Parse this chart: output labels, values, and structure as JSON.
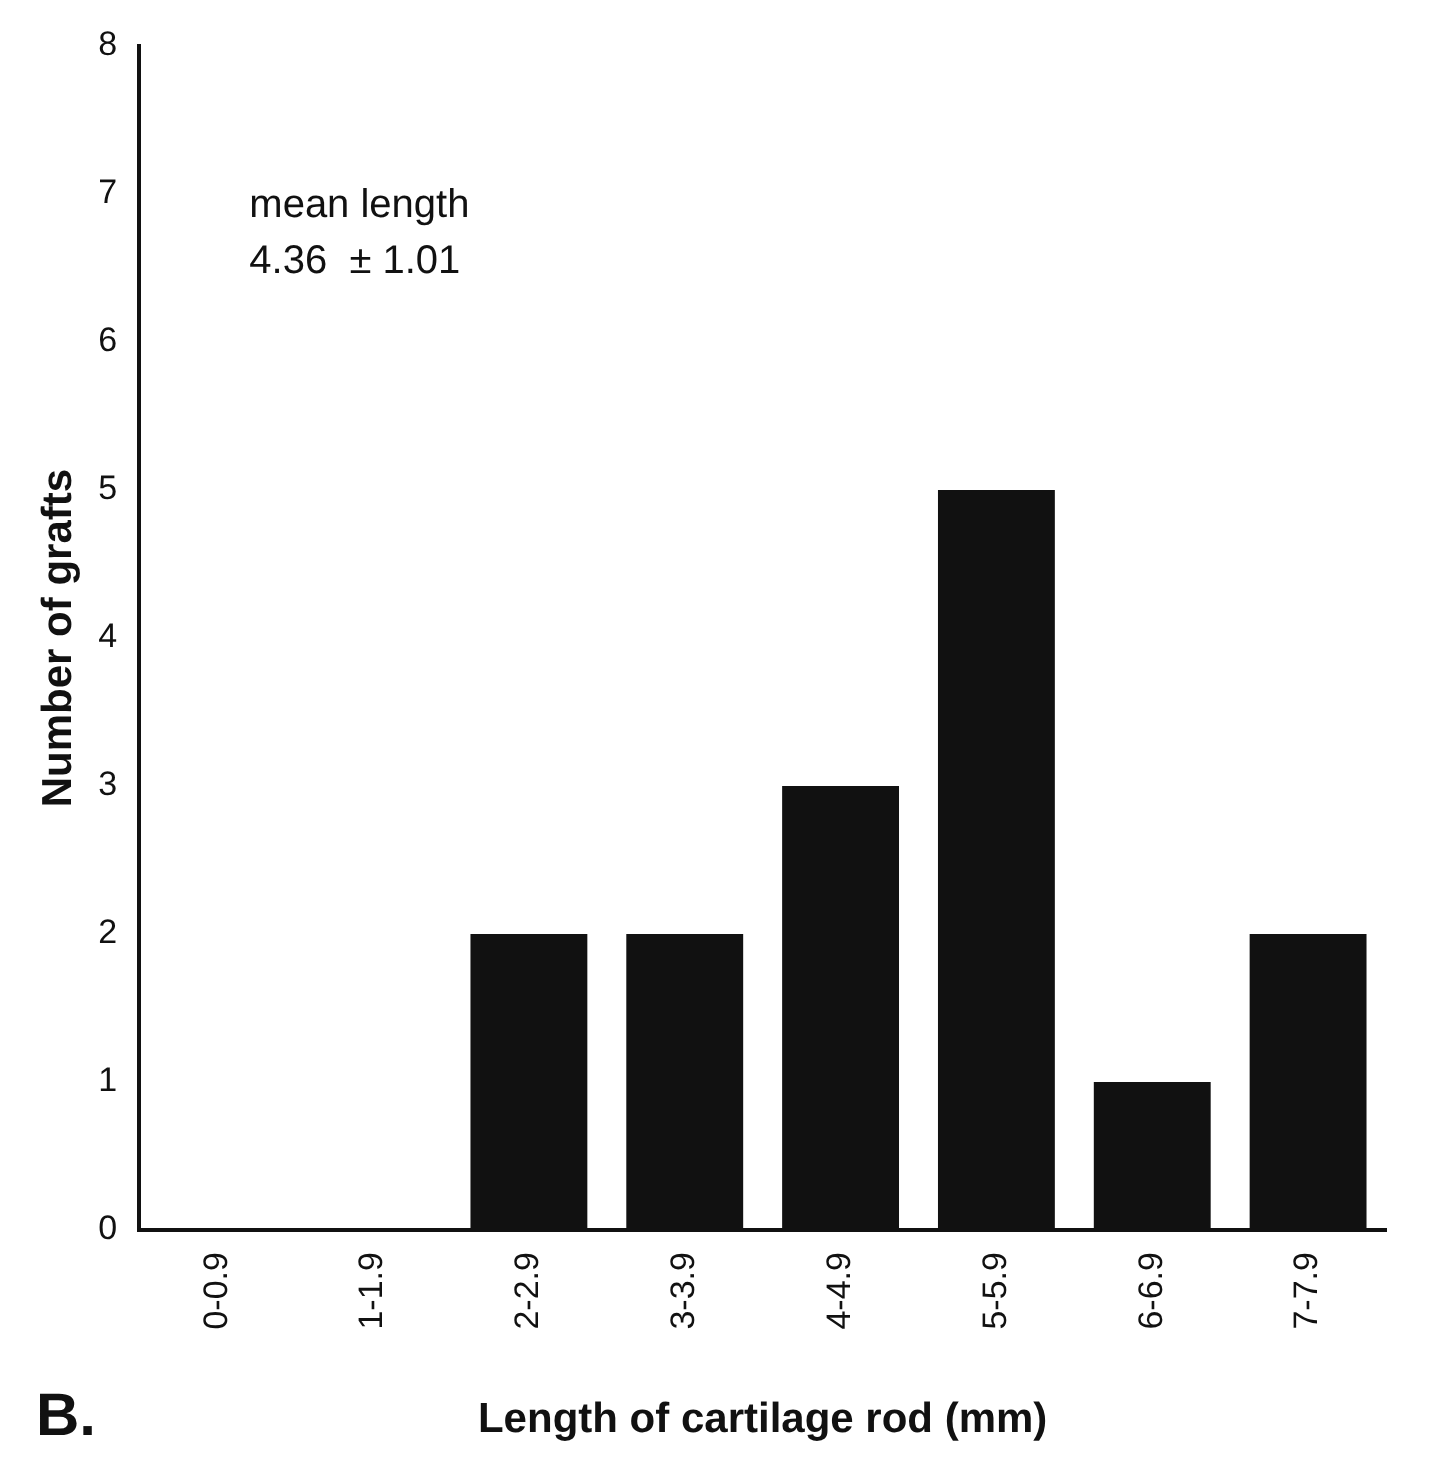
{
  "chart_data": {
    "type": "bar",
    "categories": [
      "0-0.9",
      "1-1.9",
      "2-2.9",
      "3-3.9",
      "4-4.9",
      "5-5.9",
      "6-6.9",
      "7-7.9"
    ],
    "values": [
      0,
      0,
      2,
      2,
      3,
      5,
      1,
      2
    ],
    "color": "#111111",
    "xlabel": "Length of cartilage rod (mm)",
    "ylabel": "Number of grafts",
    "ylim": [
      0,
      8
    ],
    "yticks": [
      0,
      1,
      2,
      3,
      4,
      5,
      6,
      7,
      8
    ],
    "grid": false,
    "legend": false,
    "annotations": [
      "mean length",
      "4.36  ± 1.01",
      "B."
    ]
  }
}
